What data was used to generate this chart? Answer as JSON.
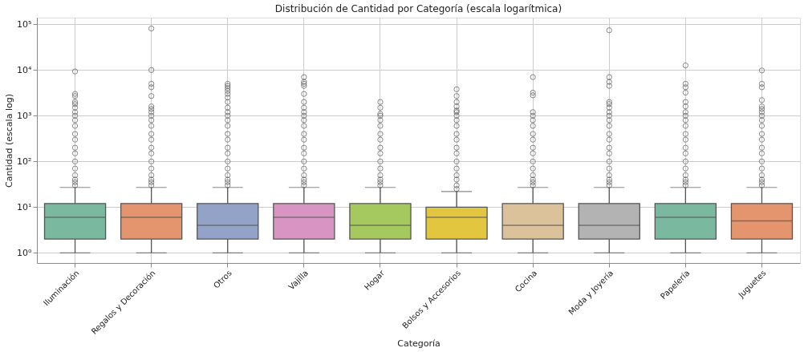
{
  "chart_data": {
    "type": "box",
    "title": "Distribución de Cantidad por Categoría (escala logarítmica)",
    "xlabel": "Categoría",
    "ylabel": "Cantidad (escala log)",
    "categories": [
      "Iluminación",
      "Regalos y Decoración",
      "Otros",
      "Vajilla",
      "Hogar",
      "Bolsos y Accesorios",
      "Cocina",
      "Moda y Joyería",
      "Papelería",
      "Juguetes"
    ],
    "colors": [
      "#7bb8a0",
      "#e4956e",
      "#93a3c8",
      "#d895c3",
      "#a5c95e",
      "#e3c640",
      "#dbc29b",
      "#b3b3b3",
      "#7bb8a0",
      "#e4956e"
    ],
    "boxes": [
      {
        "low": 1,
        "q1": 2,
        "median": 6,
        "q3": 12,
        "high": 27,
        "outliers": [
          9300,
          3000,
          2700,
          2000,
          1800,
          1500,
          1200,
          1000,
          800,
          600,
          400,
          300,
          200,
          150,
          100,
          70,
          50,
          40,
          35,
          30
        ]
      },
      {
        "low": 1,
        "q1": 2,
        "median": 6,
        "q3": 12,
        "high": 27,
        "outliers": [
          81000,
          10000,
          5000,
          4200,
          2700,
          1600,
          1400,
          1200,
          1000,
          800,
          600,
          400,
          300,
          200,
          150,
          100,
          70,
          50,
          40,
          35,
          30
        ]
      },
      {
        "low": 1,
        "q1": 2,
        "median": 4,
        "q3": 12,
        "high": 27,
        "outliers": [
          5000,
          4500,
          4000,
          3500,
          3000,
          2500,
          2000,
          1500,
          1200,
          1000,
          800,
          600,
          400,
          300,
          200,
          150,
          100,
          70,
          50,
          40,
          35,
          30
        ]
      },
      {
        "low": 1,
        "q1": 2,
        "median": 6,
        "q3": 12,
        "high": 27,
        "outliers": [
          7000,
          5500,
          5000,
          4500,
          3000,
          2000,
          1500,
          1200,
          1000,
          800,
          600,
          400,
          300,
          200,
          150,
          100,
          70,
          50,
          40,
          35,
          30
        ]
      },
      {
        "low": 1,
        "q1": 2,
        "median": 4,
        "q3": 12,
        "high": 27,
        "outliers": [
          2000,
          1500,
          1100,
          1000,
          800,
          600,
          400,
          300,
          200,
          150,
          100,
          70,
          50,
          40,
          35,
          30
        ]
      },
      {
        "low": 1,
        "q1": 2,
        "median": 6,
        "q3": 10,
        "high": 22,
        "outliers": [
          3800,
          2700,
          2000,
          1600,
          1300,
          1200,
          1000,
          800,
          600,
          400,
          300,
          200,
          150,
          100,
          70,
          50,
          40,
          30,
          25
        ]
      },
      {
        "low": 1,
        "q1": 2,
        "median": 4,
        "q3": 12,
        "high": 27,
        "outliers": [
          7000,
          3200,
          2800,
          1200,
          1000,
          800,
          600,
          400,
          300,
          200,
          150,
          100,
          70,
          50,
          40,
          35,
          30
        ]
      },
      {
        "low": 1,
        "q1": 2,
        "median": 4,
        "q3": 12,
        "high": 27,
        "outliers": [
          74000,
          7000,
          5500,
          4500,
          2000,
          1800,
          1500,
          1200,
          1000,
          800,
          600,
          400,
          300,
          200,
          150,
          100,
          70,
          50,
          40,
          35,
          30
        ]
      },
      {
        "low": 1,
        "q1": 2,
        "median": 6,
        "q3": 12,
        "high": 27,
        "outliers": [
          12600,
          5000,
          4200,
          3200,
          2000,
          1600,
          1200,
          1000,
          800,
          600,
          400,
          300,
          200,
          150,
          100,
          70,
          50,
          40,
          35,
          30
        ]
      },
      {
        "low": 1,
        "q1": 2,
        "median": 5,
        "q3": 12,
        "high": 27,
        "outliers": [
          9800,
          5000,
          4200,
          2200,
          1600,
          1400,
          1200,
          1000,
          800,
          600,
          400,
          300,
          200,
          150,
          100,
          70,
          50,
          40,
          35,
          30
        ]
      }
    ],
    "log": "y",
    "ylim": [
      0.6,
      140000
    ],
    "yticks": [
      {
        "value": 1,
        "label": "10⁰"
      },
      {
        "value": 10,
        "label": "10¹"
      },
      {
        "value": 100,
        "label": "10²"
      },
      {
        "value": 1000,
        "label": "10³"
      },
      {
        "value": 10000,
        "label": "10⁴"
      },
      {
        "value": 100000,
        "label": "10⁵"
      }
    ],
    "grid": true
  }
}
